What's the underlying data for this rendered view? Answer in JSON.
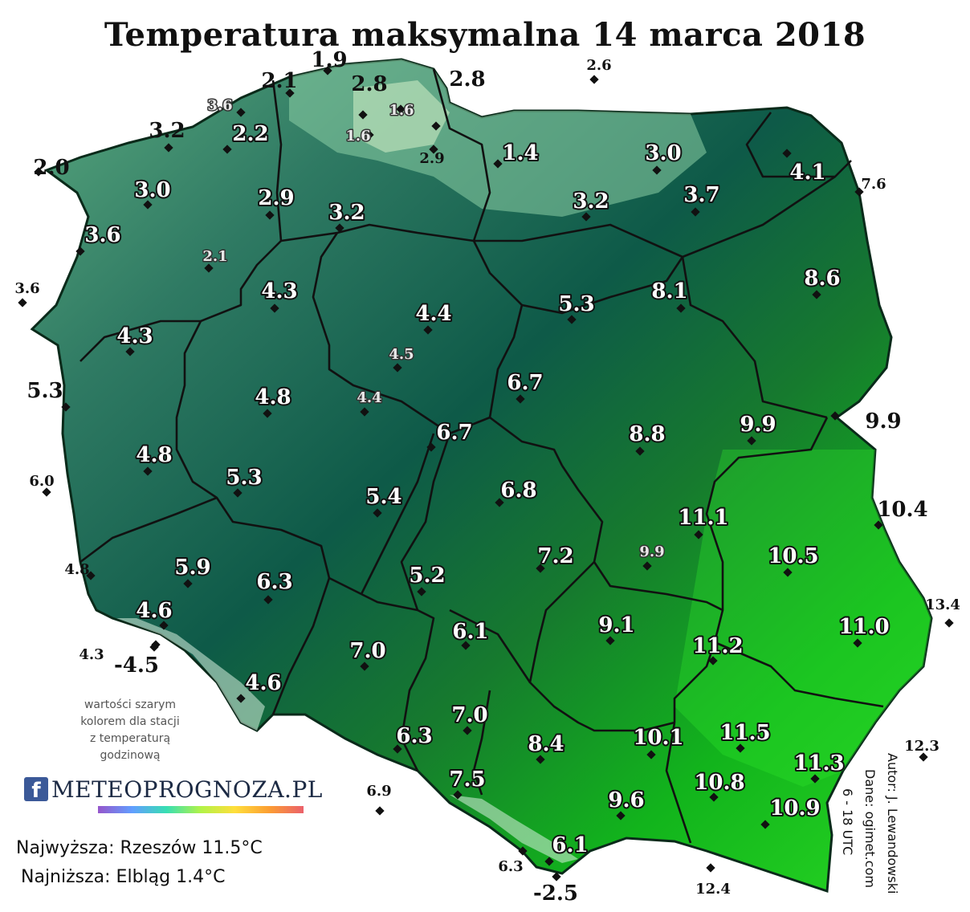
{
  "title": "Temperatura maksymalna 14 marca 2018",
  "note": [
    "wartości szarym",
    "kolorem dla stacji",
    "z temperaturą",
    "godzinową"
  ],
  "logo": {
    "f": "f",
    "text": "METEOPROGNOZA.PL"
  },
  "highest": "Najwyższa: Rzeszów 11.5°C",
  "lowest": "Najniższa: Elbląg 1.4°C",
  "credits": [
    "Autor: J. Lewandowski",
    "Dane: ogimet.com",
    "6 - 18 UTC"
  ],
  "colors": {
    "cold": "#7fc79a",
    "mid": "#0d5a48",
    "warm": "#1dd11d",
    "mountain": "#d4ecd6",
    "border": "#111111"
  },
  "stations": [
    {
      "v": "1.9",
      "s": "big"
    },
    {
      "v": "2.1",
      "s": "big"
    },
    {
      "v": "2.8",
      "s": "big"
    },
    {
      "v": "2.8",
      "s": "big"
    },
    {
      "v": "2.6",
      "s": "small"
    },
    {
      "v": "3.6",
      "s": "gray"
    },
    {
      "v": "1.6",
      "s": "gray"
    },
    {
      "v": "3.2",
      "s": "big"
    },
    {
      "v": "2.2",
      "s": "white"
    },
    {
      "v": "1.6",
      "s": "gray"
    },
    {
      "v": "2.9",
      "s": "small"
    },
    {
      "v": "1.4",
      "s": "white"
    },
    {
      "v": "3.0",
      "s": "white"
    },
    {
      "v": "4.1",
      "s": "white"
    },
    {
      "v": "2.0",
      "s": "big"
    },
    {
      "v": "3.0",
      "s": "white"
    },
    {
      "v": "7.6",
      "s": "small"
    },
    {
      "v": "2.9",
      "s": "white"
    },
    {
      "v": "3.2",
      "s": "white"
    },
    {
      "v": "3.2",
      "s": "white"
    },
    {
      "v": "3.7",
      "s": "white"
    },
    {
      "v": "3.6",
      "s": "white"
    },
    {
      "v": "2.1",
      "s": "gray"
    },
    {
      "v": "3.6",
      "s": "small"
    },
    {
      "v": "4.3",
      "s": "white"
    },
    {
      "v": "8.6",
      "s": "white"
    },
    {
      "v": "8.1",
      "s": "white"
    },
    {
      "v": "5.3",
      "s": "white"
    },
    {
      "v": "4.4",
      "s": "white"
    },
    {
      "v": "4.3",
      "s": "white"
    },
    {
      "v": "4.5",
      "s": "gray"
    },
    {
      "v": "6.7",
      "s": "white"
    },
    {
      "v": "5.3",
      "s": "big"
    },
    {
      "v": "4.8",
      "s": "white"
    },
    {
      "v": "4.4",
      "s": "gray"
    },
    {
      "v": "9.9",
      "s": "white"
    },
    {
      "v": "9.9",
      "s": "big"
    },
    {
      "v": "6.7",
      "s": "white"
    },
    {
      "v": "8.8",
      "s": "white"
    },
    {
      "v": "4.8",
      "s": "white"
    },
    {
      "v": "6.0",
      "s": "small"
    },
    {
      "v": "5.3",
      "s": "white"
    },
    {
      "v": "5.4",
      "s": "white"
    },
    {
      "v": "6.8",
      "s": "white"
    },
    {
      "v": "10.4",
      "s": "big"
    },
    {
      "v": "11.1",
      "s": "white"
    },
    {
      "v": "10.5",
      "s": "white"
    },
    {
      "v": "9.9",
      "s": "gray"
    },
    {
      "v": "7.2",
      "s": "white"
    },
    {
      "v": "5.9",
      "s": "white"
    },
    {
      "v": "4.8",
      "s": "small"
    },
    {
      "v": "6.3",
      "s": "white"
    },
    {
      "v": "5.2",
      "s": "white"
    },
    {
      "v": "4.6",
      "s": "white"
    },
    {
      "v": "13.4",
      "s": "small"
    },
    {
      "v": "11.0",
      "s": "white"
    },
    {
      "v": "9.1",
      "s": "white"
    },
    {
      "v": "6.1",
      "s": "white"
    },
    {
      "v": "11.2",
      "s": "white"
    },
    {
      "v": "4.3",
      "s": "small"
    },
    {
      "v": "-4.5",
      "s": "big"
    },
    {
      "v": "7.0",
      "s": "white"
    },
    {
      "v": "4.6",
      "s": "white"
    },
    {
      "v": "7.0",
      "s": "white"
    },
    {
      "v": "11.5",
      "s": "white"
    },
    {
      "v": "6.3",
      "s": "white"
    },
    {
      "v": "10.1",
      "s": "white"
    },
    {
      "v": "8.4",
      "s": "white"
    },
    {
      "v": "12.3",
      "s": "small"
    },
    {
      "v": "11.3",
      "s": "white"
    },
    {
      "v": "7.5",
      "s": "white"
    },
    {
      "v": "10.8",
      "s": "white"
    },
    {
      "v": "6.9",
      "s": "small"
    },
    {
      "v": "9.6",
      "s": "white"
    },
    {
      "v": "10.9",
      "s": "white"
    },
    {
      "v": "6.1",
      "s": "white"
    },
    {
      "v": "6.3",
      "s": "small"
    },
    {
      "v": "12.4",
      "s": "small"
    },
    {
      "v": "-2.5",
      "s": "big"
    }
  ]
}
